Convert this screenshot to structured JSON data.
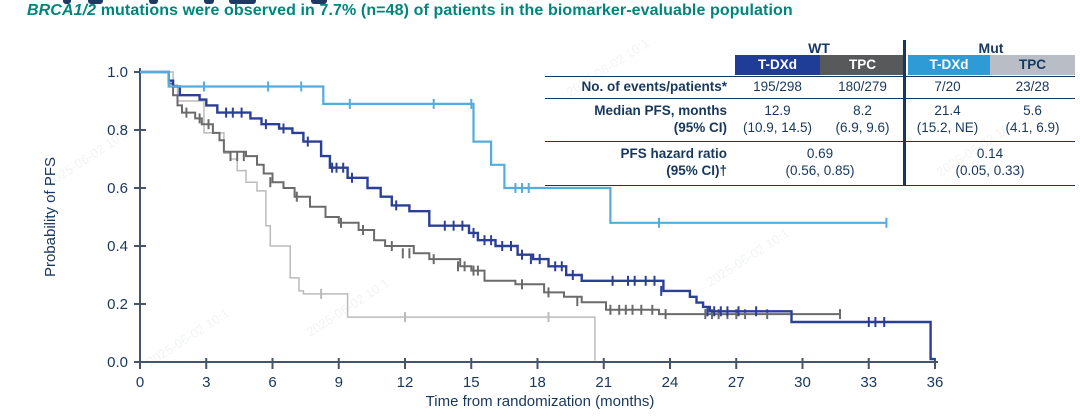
{
  "subtitle": {
    "gene": "BRCA1/2",
    "rest": " mutations were observed in 7.7% (n=48) of patients in the biomarker-evaluable population"
  },
  "watermark": "2025-06-02 10:1",
  "colors": {
    "teal_title": "#00857C",
    "navy_text": "#17375E",
    "axis": "#44546A",
    "wt_tdxd": "#2B3F96",
    "wt_tpc": "#6B6B6B",
    "mut_tdxd": "#54ACDB",
    "mut_tpc": "#BBBBBB",
    "hdr_wt_tdxd_bg": "#1F3C97",
    "hdr_wt_tpc_bg": "#58595B",
    "hdr_mut_tdxd_bg": "#2E9BD6",
    "hdr_mut_tpc_bg": "#B9BEC6"
  },
  "table": {
    "groups": [
      {
        "label": "WT"
      },
      {
        "label": "Mut"
      }
    ],
    "columns": [
      {
        "label": "T-DXd",
        "bg": "#1F3C97",
        "fg": "#FFFFFF"
      },
      {
        "label": "TPC",
        "bg": "#58595B",
        "fg": "#FFFFFF"
      },
      {
        "label": "T-DXd",
        "bg": "#2E9BD6",
        "fg": "#FFFFFF"
      },
      {
        "label": "TPC",
        "bg": "#B9BEC6",
        "fg": "#17375E"
      }
    ],
    "rows": {
      "events": {
        "label": "No. of events/patients*",
        "values": [
          "195/298",
          "180/279",
          "7/20",
          "23/28"
        ]
      },
      "median": {
        "label": "Median PFS, months",
        "sublabel": "(95% CI)",
        "values": [
          "12.9",
          "8.2",
          "21.4",
          "5.6"
        ],
        "subvalues": [
          "(10.9, 14.5)",
          "(6.9, 9.6)",
          "(15.2, NE)",
          "(4.1, 6.9)"
        ]
      },
      "hazard": {
        "label": "PFS hazard ratio",
        "sublabel": "(95% CI)†",
        "span_values": [
          "0.69",
          "0.14"
        ],
        "span_subvalues": [
          "(0.56, 0.85)",
          "(0.05, 0.33)"
        ]
      }
    }
  },
  "chart_data": {
    "type": "line",
    "subtype": "kaplan-meier-step",
    "xlabel": "Time from randomization (months)",
    "ylabel": "Probability of PFS",
    "xlim": [
      0,
      36
    ],
    "ylim": [
      0.0,
      1.0
    ],
    "x_ticks": [
      0,
      3,
      6,
      9,
      12,
      15,
      18,
      21,
      24,
      27,
      30,
      33,
      36
    ],
    "x_tick_labels": [
      "0",
      "3",
      "6",
      "9",
      "12",
      "15",
      "18",
      "21",
      "24",
      "27",
      "30",
      "33",
      "36"
    ],
    "y_ticks": [
      0.0,
      0.2,
      0.4,
      0.6,
      0.8,
      1.0
    ],
    "y_tick_labels": [
      "0.0",
      "0.2",
      "0.4",
      "0.6",
      "0.8",
      "1.0"
    ],
    "grid": false,
    "legend": "none (colored table headers identify the curves)",
    "series": [
      {
        "name": "Mut TPC",
        "color": "#BBBBBB",
        "width": 1.5,
        "points": [
          [
            0,
            1.0
          ],
          [
            1.5,
            0.955
          ],
          [
            1.7,
            0.9
          ],
          [
            2.9,
            0.79
          ],
          [
            3.8,
            0.72
          ],
          [
            4.1,
            0.7
          ],
          [
            4.4,
            0.66
          ],
          [
            4.8,
            0.62
          ],
          [
            5.3,
            0.59
          ],
          [
            5.7,
            0.47
          ],
          [
            5.9,
            0.4
          ],
          [
            6.8,
            0.29
          ],
          [
            7.2,
            0.245
          ],
          [
            7.4,
            0.235
          ],
          [
            9.4,
            0.155
          ],
          [
            20.6,
            0.005
          ]
        ],
        "end": 20.6,
        "censors": [
          [
            8.2,
            0.235
          ],
          [
            12.0,
            0.155
          ],
          [
            18.5,
            0.155
          ]
        ]
      },
      {
        "name": "WT TPC",
        "color": "#6B6B6B",
        "width": 2,
        "points": [
          [
            0,
            1.0
          ],
          [
            1.3,
            0.96
          ],
          [
            1.5,
            0.92
          ],
          [
            1.7,
            0.885
          ],
          [
            1.9,
            0.86
          ],
          [
            2.5,
            0.84
          ],
          [
            2.8,
            0.82
          ],
          [
            3.3,
            0.79
          ],
          [
            3.6,
            0.765
          ],
          [
            3.8,
            0.725
          ],
          [
            4.8,
            0.71
          ],
          [
            5.3,
            0.68
          ],
          [
            5.6,
            0.65
          ],
          [
            6.0,
            0.62
          ],
          [
            6.5,
            0.6
          ],
          [
            7.0,
            0.57
          ],
          [
            7.7,
            0.535
          ],
          [
            8.4,
            0.5
          ],
          [
            9.0,
            0.48
          ],
          [
            9.9,
            0.455
          ],
          [
            10.6,
            0.42
          ],
          [
            11.1,
            0.4
          ],
          [
            12.4,
            0.375
          ],
          [
            13.1,
            0.355
          ],
          [
            14.5,
            0.33
          ],
          [
            15.0,
            0.315
          ],
          [
            15.6,
            0.28
          ],
          [
            17.0,
            0.268
          ],
          [
            18.3,
            0.24
          ],
          [
            19.2,
            0.225
          ],
          [
            20.0,
            0.206
          ],
          [
            21.1,
            0.18
          ],
          [
            23.5,
            0.165
          ]
        ],
        "end": 31.7,
        "censors": [
          [
            2.1,
            0.86
          ],
          [
            2.7,
            0.84
          ],
          [
            3.1,
            0.82
          ],
          [
            4.1,
            0.71
          ],
          [
            4.4,
            0.71
          ],
          [
            4.7,
            0.71
          ],
          [
            5.9,
            0.62
          ],
          [
            7.1,
            0.57
          ],
          [
            9.1,
            0.48
          ],
          [
            10.1,
            0.455
          ],
          [
            11.4,
            0.4
          ],
          [
            11.9,
            0.375
          ],
          [
            12.2,
            0.375
          ],
          [
            13.3,
            0.355
          ],
          [
            14.4,
            0.33
          ],
          [
            14.7,
            0.33
          ],
          [
            15.1,
            0.315
          ],
          [
            15.3,
            0.315
          ],
          [
            17.3,
            0.268
          ],
          [
            18.5,
            0.24
          ],
          [
            19.8,
            0.21
          ],
          [
            21.3,
            0.18
          ],
          [
            21.7,
            0.18
          ],
          [
            22.0,
            0.18
          ],
          [
            22.3,
            0.18
          ],
          [
            22.7,
            0.18
          ],
          [
            23.2,
            0.18
          ],
          [
            23.8,
            0.165
          ],
          [
            25.6,
            0.165
          ],
          [
            25.9,
            0.165
          ],
          [
            26.2,
            0.165
          ],
          [
            26.6,
            0.165
          ],
          [
            27.0,
            0.165
          ],
          [
            27.4,
            0.165
          ],
          [
            28.4,
            0.165
          ],
          [
            31.7,
            0.165
          ]
        ]
      },
      {
        "name": "WT T-DXd",
        "color": "#2B3F96",
        "width": 2.4,
        "points": [
          [
            0,
            1.0
          ],
          [
            1.3,
            0.97
          ],
          [
            1.5,
            0.95
          ],
          [
            1.8,
            0.92
          ],
          [
            2.7,
            0.905
          ],
          [
            3.0,
            0.885
          ],
          [
            3.5,
            0.86
          ],
          [
            5.0,
            0.84
          ],
          [
            5.5,
            0.82
          ],
          [
            6.3,
            0.805
          ],
          [
            6.9,
            0.79
          ],
          [
            7.4,
            0.76
          ],
          [
            8.2,
            0.71
          ],
          [
            8.6,
            0.67
          ],
          [
            9.4,
            0.635
          ],
          [
            10.3,
            0.6
          ],
          [
            10.9,
            0.57
          ],
          [
            11.4,
            0.54
          ],
          [
            12.2,
            0.52
          ],
          [
            13.1,
            0.47
          ],
          [
            14.9,
            0.445
          ],
          [
            15.3,
            0.42
          ],
          [
            16.1,
            0.4
          ],
          [
            17.1,
            0.37
          ],
          [
            17.8,
            0.355
          ],
          [
            18.5,
            0.33
          ],
          [
            19.3,
            0.3
          ],
          [
            20.0,
            0.28
          ],
          [
            23.7,
            0.245
          ],
          [
            24.9,
            0.225
          ],
          [
            25.2,
            0.205
          ],
          [
            25.5,
            0.19
          ],
          [
            25.8,
            0.175
          ],
          [
            29.5,
            0.138
          ],
          [
            35.8,
            0.01
          ]
        ],
        "end": 36.0,
        "censors": [
          [
            3.9,
            0.86
          ],
          [
            4.2,
            0.86
          ],
          [
            4.6,
            0.86
          ],
          [
            5.7,
            0.82
          ],
          [
            6.5,
            0.805
          ],
          [
            7.6,
            0.76
          ],
          [
            8.7,
            0.67
          ],
          [
            8.9,
            0.67
          ],
          [
            9.2,
            0.67
          ],
          [
            9.6,
            0.635
          ],
          [
            11.6,
            0.54
          ],
          [
            13.8,
            0.47
          ],
          [
            14.2,
            0.47
          ],
          [
            14.6,
            0.47
          ],
          [
            15.1,
            0.445
          ],
          [
            15.6,
            0.42
          ],
          [
            15.9,
            0.42
          ],
          [
            16.4,
            0.4
          ],
          [
            16.8,
            0.4
          ],
          [
            17.3,
            0.37
          ],
          [
            17.7,
            0.355
          ],
          [
            18.1,
            0.355
          ],
          [
            18.8,
            0.33
          ],
          [
            19.1,
            0.33
          ],
          [
            19.6,
            0.3
          ],
          [
            21.4,
            0.28
          ],
          [
            22.1,
            0.28
          ],
          [
            22.4,
            0.28
          ],
          [
            22.9,
            0.28
          ],
          [
            23.3,
            0.28
          ],
          [
            23.6,
            0.245
          ],
          [
            25.7,
            0.175
          ],
          [
            26.0,
            0.175
          ],
          [
            26.3,
            0.175
          ],
          [
            26.6,
            0.175
          ],
          [
            27.1,
            0.175
          ],
          [
            27.9,
            0.175
          ],
          [
            33.0,
            0.138
          ],
          [
            33.3,
            0.138
          ],
          [
            33.7,
            0.138
          ]
        ]
      },
      {
        "name": "Mut T-DXd",
        "color": "#54ACDB",
        "width": 2.2,
        "points": [
          [
            0,
            1.0
          ],
          [
            1.3,
            0.95
          ],
          [
            8.3,
            0.89
          ],
          [
            15.1,
            0.76
          ],
          [
            15.9,
            0.68
          ],
          [
            16.5,
            0.6
          ],
          [
            21.3,
            0.48
          ]
        ],
        "end": 33.8,
        "censors": [
          [
            2.9,
            0.95
          ],
          [
            5.8,
            0.95
          ],
          [
            7.3,
            0.95
          ],
          [
            9.5,
            0.89
          ],
          [
            13.3,
            0.89
          ],
          [
            15.0,
            0.89
          ],
          [
            17.0,
            0.6
          ],
          [
            17.3,
            0.6
          ],
          [
            17.6,
            0.6
          ],
          [
            23.5,
            0.48
          ],
          [
            33.8,
            0.48
          ]
        ]
      }
    ]
  }
}
